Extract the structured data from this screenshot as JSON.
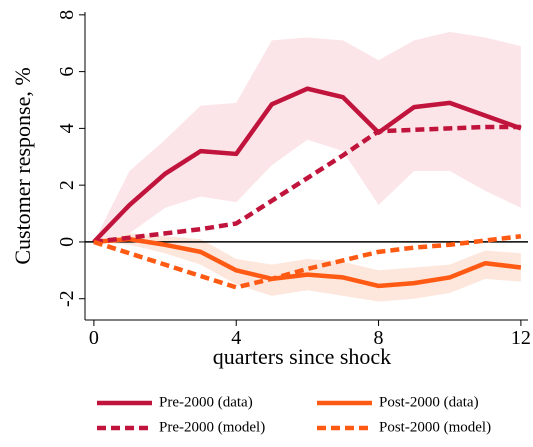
{
  "chart_data": {
    "type": "line",
    "xlabel": "quarters since shock",
    "ylabel": "Customer response, %",
    "x": [
      0,
      1,
      2,
      3,
      4,
      5,
      6,
      7,
      8,
      9,
      10,
      11,
      12
    ],
    "xlim": [
      -0.25,
      12.2
    ],
    "ylim": [
      -2.75,
      8.1
    ],
    "xticks": [
      0,
      4,
      8,
      12
    ],
    "yticks": [
      -2,
      0,
      2,
      4,
      6,
      8
    ],
    "hline": 0,
    "series": [
      {
        "name": "Pre-2000 (data)",
        "color": "#c0143c",
        "dash": false,
        "band_color": "#fbe1e5",
        "values": [
          0,
          1.3,
          2.4,
          3.2,
          3.1,
          4.85,
          5.4,
          5.1,
          3.85,
          4.75,
          4.9,
          4.45,
          4.0
        ],
        "lower": [
          0,
          0.3,
          1.2,
          1.6,
          1.4,
          2.7,
          3.6,
          3.2,
          1.3,
          2.5,
          2.5,
          1.8,
          1.2
        ],
        "upper": [
          0,
          2.5,
          3.6,
          4.8,
          4.9,
          7.1,
          7.2,
          7.1,
          6.4,
          7.1,
          7.4,
          7.2,
          6.9
        ]
      },
      {
        "name": "Post-2000 (data)",
        "color": "#ff5a14",
        "dash": false,
        "band_color": "#fde2d6",
        "values": [
          0,
          0.1,
          -0.1,
          -0.35,
          -1.0,
          -1.3,
          -1.15,
          -1.25,
          -1.55,
          -1.45,
          -1.25,
          -0.75,
          -0.9
        ],
        "lower": [
          0,
          -0.1,
          -0.4,
          -0.8,
          -1.5,
          -1.9,
          -1.7,
          -1.9,
          -2.1,
          -2.0,
          -1.8,
          -1.3,
          -1.4
        ],
        "upper": [
          0,
          0.3,
          0.2,
          0.1,
          -0.6,
          -0.8,
          -0.6,
          -0.7,
          -1.0,
          -0.9,
          -0.8,
          -0.3,
          -0.4
        ]
      },
      {
        "name": "Pre-2000 (model)",
        "color": "#c0143c",
        "dash": true,
        "values": [
          0,
          0.15,
          0.3,
          0.45,
          0.65,
          1.45,
          2.25,
          3.05,
          3.9,
          3.95,
          4.0,
          4.05,
          4.05
        ]
      },
      {
        "name": "Post-2000 (model)",
        "color": "#ff5a14",
        "dash": true,
        "values": [
          0,
          -0.4,
          -0.8,
          -1.2,
          -1.6,
          -1.3,
          -0.95,
          -0.65,
          -0.35,
          -0.2,
          -0.1,
          0.05,
          0.2
        ]
      }
    ]
  }
}
